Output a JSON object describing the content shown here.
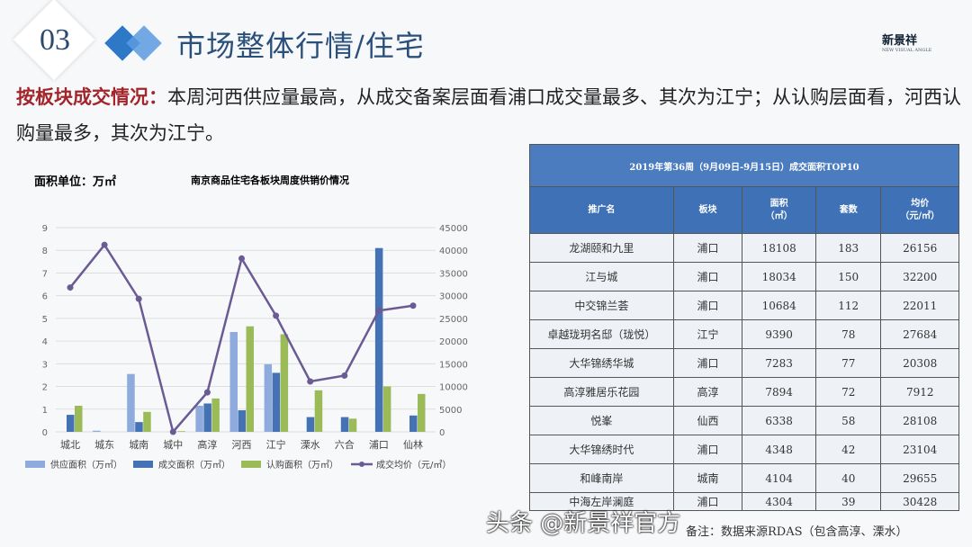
{
  "header": {
    "section_number": "03",
    "title": "市场整体行情/住宅",
    "logo_text": "新景祥",
    "logo_sub": "NEW VISUAL ANGLE"
  },
  "summary": {
    "lead": "按板块成交情况：",
    "text": "本周河西供应量最高，从成交备案层面看浦口成交量最多、其次为江宁；从认购层面看，河西认购量最多，其次为江宁。"
  },
  "colors": {
    "supply": "#8faadc",
    "deal": "#4472b4",
    "subscribe": "#9bbb59",
    "price": "#6b5b95",
    "table_header": "#3f71b6"
  },
  "chart_data": {
    "type": "bar+line",
    "title": "南京商品住宅各板块周度供销价情况",
    "unit_label": "面积单位：万㎡",
    "categories": [
      "城北",
      "城东",
      "城南",
      "城中",
      "高淳",
      "河西",
      "江宁",
      "溧水",
      "六合",
      "浦口",
      "仙林"
    ],
    "y_left": {
      "range": [
        0,
        9
      ],
      "ticks": [
        "0",
        "1",
        "2",
        "3",
        "4",
        "5",
        "6",
        "7",
        "8",
        "9"
      ]
    },
    "y_right": {
      "range": [
        0,
        45000
      ],
      "ticks": [
        "0",
        "5000",
        "10000",
        "15000",
        "20000",
        "25000",
        "30000",
        "35000",
        "40000",
        "45000"
      ]
    },
    "grid": true,
    "legend_position": "bottom",
    "series": [
      {
        "name": "供应面积（万㎡）",
        "type": "bar",
        "axis": "left",
        "values": [
          0,
          0.05,
          2.55,
          0,
          1.15,
          4.4,
          2.98,
          0,
          0,
          0,
          0
        ]
      },
      {
        "name": "成交面积（万㎡）",
        "type": "bar",
        "axis": "left",
        "values": [
          0.75,
          0,
          0.43,
          0,
          1.25,
          0.95,
          2.6,
          0.65,
          0.65,
          8.1,
          0.72
        ]
      },
      {
        "name": "认购面积（万㎡）",
        "type": "bar",
        "axis": "left",
        "values": [
          1.15,
          0,
          0.88,
          0.03,
          1.47,
          4.65,
          4.3,
          1.83,
          0.58,
          2.0,
          1.67
        ]
      },
      {
        "name": "成交均价（元/㎡）",
        "type": "line",
        "axis": "right",
        "values": [
          31800,
          41200,
          29300,
          0,
          8700,
          38200,
          25600,
          11100,
          12400,
          26700,
          27800
        ]
      }
    ]
  },
  "table": {
    "caption": "2019年第36周（9月09日-9月15日）成交面积TOP10",
    "columns": [
      "推广名",
      "板块",
      "面积\n（㎡）",
      "套数",
      "均价\n（元/㎡）"
    ],
    "rows": [
      [
        "龙湖颐和九里",
        "浦口",
        "18108",
        "183",
        "26156"
      ],
      [
        "江与城",
        "浦口",
        "18034",
        "150",
        "32200"
      ],
      [
        "中交锦兰荟",
        "浦口",
        "10684",
        "112",
        "22011"
      ],
      [
        "卓越珑玥名邸（珑悦）",
        "江宁",
        "9390",
        "78",
        "27684"
      ],
      [
        "大华锦绣华城",
        "浦口",
        "7283",
        "77",
        "20308"
      ],
      [
        "高淳雅居乐花园",
        "高淳",
        "7894",
        "72",
        "7912"
      ],
      [
        "悦峯",
        "仙西",
        "6338",
        "58",
        "28108"
      ],
      [
        "大华锦绣时代",
        "浦口",
        "4348",
        "42",
        "23104"
      ],
      [
        "和峰南岸",
        "城南",
        "4104",
        "40",
        "29655"
      ],
      [
        "中海左岸澜庭",
        "浦口",
        "4304",
        "39",
        "30428"
      ]
    ]
  },
  "note": "备注：数据来源RDAS（包含高淳、溧水）",
  "watermark": "头条 @新景祥官方"
}
